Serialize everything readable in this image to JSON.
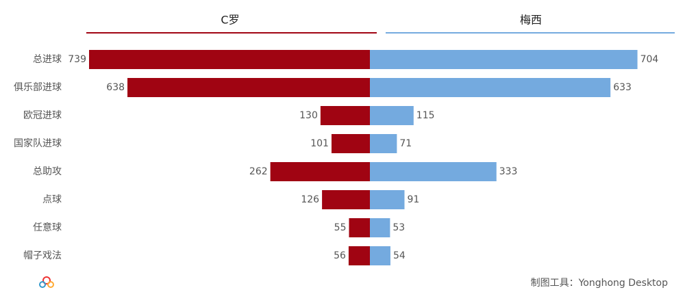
{
  "chart_data": {
    "type": "butterfly",
    "categories": [
      "总进球",
      "俱乐部进球",
      "欧冠进球",
      "国家队进球",
      "总助攻",
      "点球",
      "任意球",
      "帽子戏法"
    ],
    "series": [
      {
        "name": "C罗",
        "color": "#a00412",
        "values": [
          739,
          638,
          130,
          101,
          262,
          126,
          55,
          56
        ]
      },
      {
        "name": "梅西",
        "color": "#74aadf",
        "values": [
          704,
          633,
          115,
          71,
          333,
          91,
          53,
          54
        ]
      }
    ],
    "source": "制图工具：Yonghong Desktop"
  }
}
